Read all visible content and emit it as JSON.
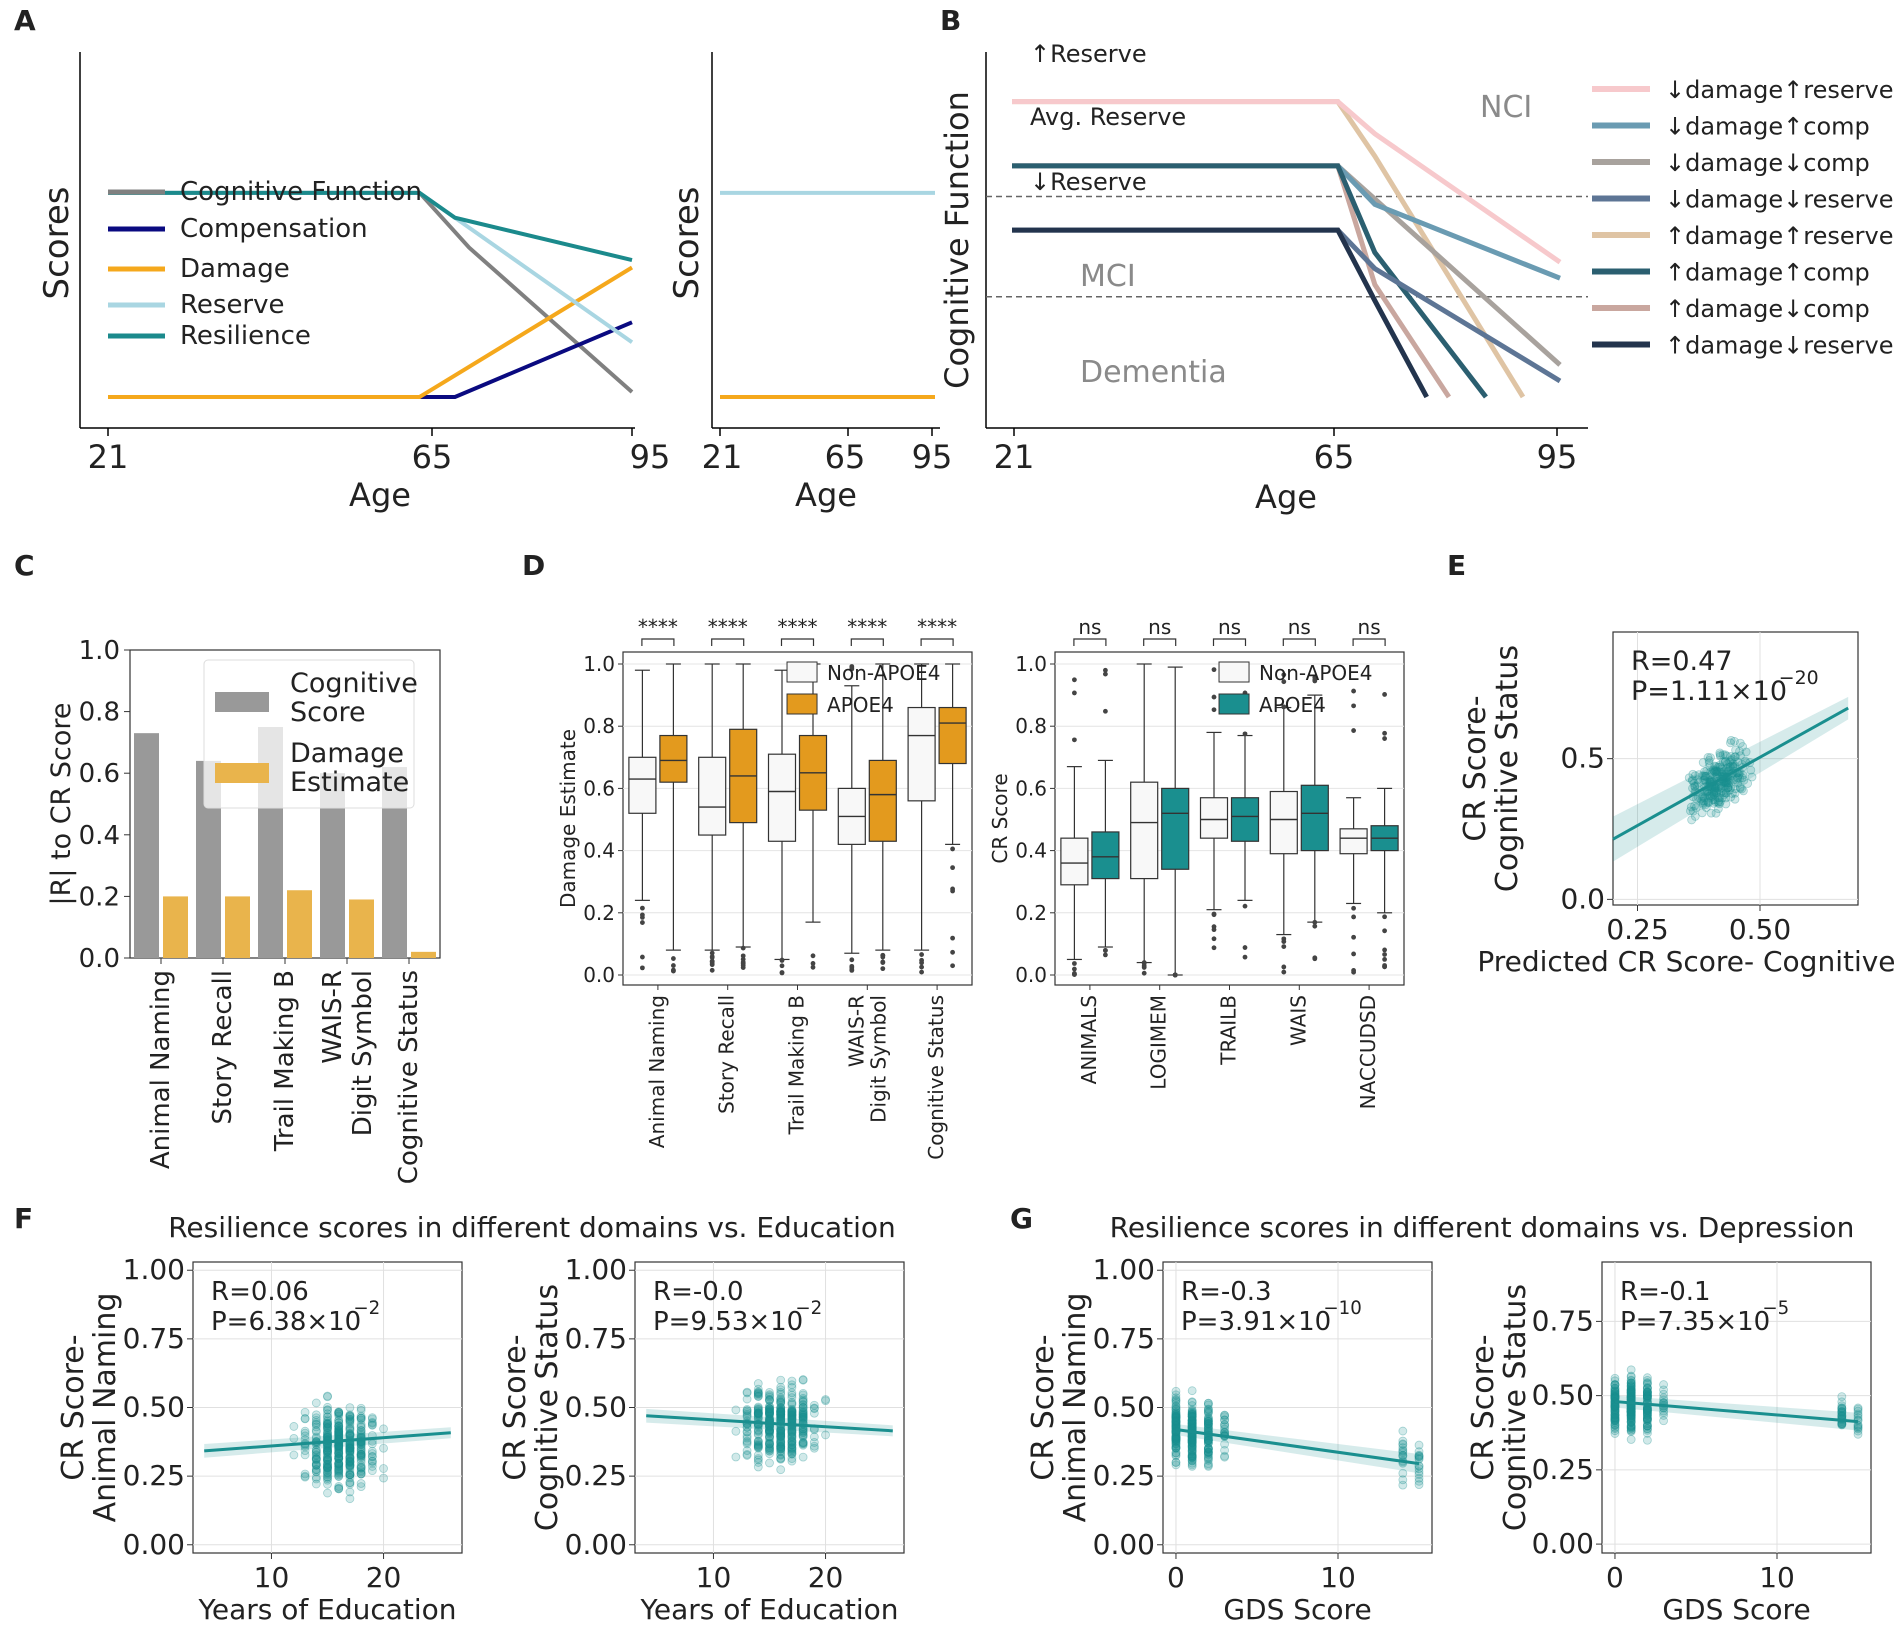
{
  "colors": {
    "cognitive": "#808080",
    "compensation": "#0a0a80",
    "damage": "#f5a81c",
    "reserve": "#a9d6e2",
    "resilience": "#1b8a8c",
    "teal": "#1a8f8f",
    "apoe4_orange": "#e39a1e",
    "grey_bar": "#999999",
    "gold_bar": "#e9b44c",
    "nci_text": "#8a8a8a"
  },
  "panels": {
    "A": "A",
    "B": "B",
    "C": "C",
    "D": "D",
    "E": "E",
    "F": "F",
    "G": "G"
  },
  "chart_data": [
    {
      "id": "A1",
      "type": "line",
      "xlabel": "Age",
      "ylabel": "Scores",
      "xticks": [
        "21",
        "65",
        "95"
      ],
      "xlim": [
        21,
        95
      ],
      "ylim": [
        0,
        1
      ],
      "legend": [
        "Cognitive Function",
        "Compensation",
        "Damage",
        "Reserve",
        "Resilience"
      ],
      "series": [
        {
          "name": "Cognitive Function",
          "color": "#808080",
          "points": [
            [
              21,
              0.82
            ],
            [
              65,
              0.82
            ],
            [
              72,
              0.6
            ],
            [
              95,
              0.02
            ]
          ]
        },
        {
          "name": "Compensation",
          "color": "#0a0a80",
          "points": [
            [
              21,
              0.0
            ],
            [
              65,
              0.0
            ],
            [
              70,
              0.0
            ],
            [
              95,
              0.3
            ]
          ]
        },
        {
          "name": "Damage",
          "color": "#f5a81c",
          "points": [
            [
              21,
              0.0
            ],
            [
              65,
              0.0
            ],
            [
              95,
              0.52
            ]
          ]
        },
        {
          "name": "Reserve",
          "color": "#a9d6e2",
          "points": [
            [
              21,
              0.82
            ],
            [
              65,
              0.82
            ],
            [
              95,
              0.22
            ]
          ]
        },
        {
          "name": "Resilience",
          "color": "#1b8a8c",
          "points": [
            [
              21,
              0.82
            ],
            [
              65,
              0.82
            ],
            [
              70,
              0.72
            ],
            [
              95,
              0.55
            ]
          ]
        }
      ]
    },
    {
      "id": "A2",
      "type": "line",
      "xlabel": "Age",
      "ylabel": "Scores",
      "xticks": [
        "21",
        "65",
        "95"
      ],
      "xlim": [
        21,
        95
      ],
      "ylim": [
        0,
        1
      ],
      "series": [
        {
          "name": "Reserve",
          "color": "#a9d6e2",
          "points": [
            [
              21,
              0.82
            ],
            [
              95,
              0.82
            ]
          ]
        },
        {
          "name": "Damage",
          "color": "#f5a81c",
          "points": [
            [
              21,
              0.0
            ],
            [
              95,
              0.0
            ]
          ]
        }
      ]
    },
    {
      "id": "B",
      "type": "line",
      "xlabel": "Age",
      "ylabel": "Cognitive Function",
      "xticks": [
        "21",
        "65",
        "95"
      ],
      "xlim": [
        21,
        95
      ],
      "ylim": [
        0,
        1
      ],
      "annotations": [
        "↑Reserve",
        "Avg. Reserve",
        "↓Reserve",
        "NCI",
        "MCI",
        "Dementia"
      ],
      "thresholds": [
        0.5,
        0.25
      ],
      "legend": [
        "↓damage↑reserve",
        "↓damage↑comp",
        "↓damage↓comp",
        "↓damage↓reserve",
        "↑damage↑reserve",
        "↑damage↑comp",
        "↑damage↓comp",
        "↑damage↓reserve"
      ],
      "series": [
        {
          "name": "↓damage↑reserve",
          "color": "#f7c9cc",
          "points": [
            [
              21,
              0.92
            ],
            [
              65,
              0.92
            ],
            [
              70,
              0.82
            ],
            [
              95,
              0.42
            ]
          ]
        },
        {
          "name": "↓damage↑comp",
          "color": "#6a9bb2",
          "points": [
            [
              21,
              0.72
            ],
            [
              65,
              0.72
            ],
            [
              70,
              0.6
            ],
            [
              95,
              0.37
            ]
          ]
        },
        {
          "name": "↓damage↓comp",
          "color": "#a8a29d",
          "points": [
            [
              21,
              0.72
            ],
            [
              65,
              0.72
            ],
            [
              95,
              0.1
            ]
          ]
        },
        {
          "name": "↓damage↓reserve",
          "color": "#5d7595",
          "points": [
            [
              21,
              0.52
            ],
            [
              65,
              0.52
            ],
            [
              70,
              0.4
            ],
            [
              95,
              0.05
            ]
          ]
        },
        {
          "name": "↑damage↑reserve",
          "color": "#dfc4a4",
          "points": [
            [
              21,
              0.92
            ],
            [
              65,
              0.92
            ],
            [
              70,
              0.75
            ],
            [
              90,
              0.0
            ]
          ]
        },
        {
          "name": "↑damage↑comp",
          "color": "#2b5f70",
          "points": [
            [
              21,
              0.72
            ],
            [
              65,
              0.72
            ],
            [
              70,
              0.45
            ],
            [
              85,
              0.0
            ]
          ]
        },
        {
          "name": "↑damage↓comp",
          "color": "#c9a79f",
          "points": [
            [
              21,
              0.72
            ],
            [
              65,
              0.72
            ],
            [
              70,
              0.35
            ],
            [
              80,
              0.0
            ]
          ]
        },
        {
          "name": "↑damage↓reserve",
          "color": "#23344d",
          "points": [
            [
              21,
              0.52
            ],
            [
              65,
              0.52
            ],
            [
              70,
              0.3
            ],
            [
              77,
              0.0
            ]
          ]
        }
      ]
    },
    {
      "id": "C",
      "type": "bar",
      "ylabel": "|R| to CR Score",
      "ylim": [
        0,
        1
      ],
      "yticks": [
        "0.0",
        "0.2",
        "0.4",
        "0.6",
        "0.8",
        "1.0"
      ],
      "categories": [
        "Animal Naming",
        "Story Recall",
        "Trail Making B",
        "WAIS-R\nDigit Symbol",
        "Cognitive Status"
      ],
      "legend": [
        "Cognitive\nScore",
        "Damage\nEstimate"
      ],
      "series": [
        {
          "name": "Cognitive Score",
          "values": [
            0.73,
            0.64,
            0.75,
            0.6,
            0.62
          ]
        },
        {
          "name": "Damage Estimate",
          "values": [
            0.2,
            0.2,
            0.22,
            0.19,
            0.02
          ]
        }
      ]
    },
    {
      "id": "D1",
      "type": "box",
      "ylabel": "Damage Estimate",
      "ylim": [
        0,
        1
      ],
      "yticks": [
        "0.0",
        "0.2",
        "0.4",
        "0.6",
        "0.8",
        "1.0"
      ],
      "categories": [
        "Animal Naming",
        "Story Recall",
        "Trail Making B",
        "WAIS-R\nDigit Symbol",
        "Cognitive Status"
      ],
      "significance": [
        "****",
        "****",
        "****",
        "****",
        "****"
      ],
      "legend": [
        "Non-APOE4",
        "APOE4"
      ],
      "groups": [
        {
          "name": "Non-APOE4",
          "boxes": [
            [
              0.24,
              0.52,
              0.63,
              0.7,
              0.98
            ],
            [
              0.08,
              0.45,
              0.54,
              0.7,
              1.0
            ],
            [
              0.05,
              0.43,
              0.59,
              0.71,
              0.98
            ],
            [
              0.07,
              0.42,
              0.51,
              0.6,
              0.93
            ],
            [
              0.08,
              0.56,
              0.77,
              0.86,
              1.0
            ]
          ]
        },
        {
          "name": "APOE4",
          "boxes": [
            [
              0.08,
              0.62,
              0.69,
              0.77,
              1.0
            ],
            [
              0.09,
              0.49,
              0.64,
              0.79,
              1.0
            ],
            [
              0.17,
              0.53,
              0.65,
              0.77,
              1.0
            ],
            [
              0.08,
              0.43,
              0.58,
              0.69,
              1.0
            ],
            [
              0.42,
              0.68,
              0.81,
              0.86,
              1.0
            ]
          ]
        }
      ]
    },
    {
      "id": "D2",
      "type": "box",
      "ylabel": "CR Score",
      "ylim": [
        0,
        1
      ],
      "yticks": [
        "0.0",
        "0.2",
        "0.4",
        "0.6",
        "0.8",
        "1.0"
      ],
      "categories": [
        "ANIMALS",
        "LOGIMEM",
        "TRAILB",
        "WAIS",
        "NACCUDSD"
      ],
      "significance": [
        "ns",
        "ns",
        "ns",
        "ns",
        "ns"
      ],
      "legend": [
        "Non-APOE4",
        "APOE4"
      ],
      "groups": [
        {
          "name": "Non-APOE4",
          "boxes": [
            [
              0.05,
              0.29,
              0.36,
              0.44,
              0.67
            ],
            [
              0.04,
              0.31,
              0.49,
              0.62,
              1.0
            ],
            [
              0.21,
              0.44,
              0.5,
              0.57,
              0.78
            ],
            [
              0.13,
              0.39,
              0.5,
              0.59,
              0.86
            ],
            [
              0.23,
              0.39,
              0.44,
              0.47,
              0.57
            ]
          ]
        },
        {
          "name": "APOE4",
          "boxes": [
            [
              0.09,
              0.31,
              0.38,
              0.46,
              0.69
            ],
            [
              0.0,
              0.34,
              0.52,
              0.6,
              0.99
            ],
            [
              0.24,
              0.43,
              0.51,
              0.57,
              0.77
            ],
            [
              0.17,
              0.4,
              0.52,
              0.61,
              0.9
            ],
            [
              0.2,
              0.4,
              0.44,
              0.48,
              0.6
            ]
          ]
        }
      ]
    },
    {
      "id": "E",
      "type": "scatter",
      "xlabel": "Predicted CR Score-\nCognitive Status",
      "ylabel": "CR Score-\nCognitive Status",
      "xticks": [
        "0.25",
        "0.50"
      ],
      "yticks": [
        "0.0",
        "0.5"
      ],
      "xlim": [
        0.2,
        0.7
      ],
      "ylim": [
        -0.02,
        0.95
      ],
      "fit": {
        "slope": 0.97,
        "intercept": 0.02
      },
      "R": "R=0.47",
      "P": "P=1.11×10",
      "P_exp": "−20"
    },
    {
      "id": "F1",
      "type": "scatter",
      "xlabel": "Years of Education",
      "ylabel": "CR Score-\nAnimal Naming",
      "xticks": [
        "10",
        "20"
      ],
      "yticks": [
        "0.00",
        "0.25",
        "0.50",
        "0.75",
        "1.00"
      ],
      "xlim": [
        3,
        27
      ],
      "ylim": [
        -0.03,
        1.03
      ],
      "fit": {
        "slope": 0.003,
        "intercept": 0.33
      },
      "R": "R=0.06",
      "P": "P=6.38×10",
      "P_exp": "−2"
    },
    {
      "id": "F2",
      "type": "scatter",
      "xlabel": "Years of Education",
      "ylabel": "CR Score-\nCognitive Status",
      "xticks": [
        "10",
        "20"
      ],
      "yticks": [
        "0.00",
        "0.25",
        "0.50",
        "0.75",
        "1.00"
      ],
      "xlim": [
        3,
        27
      ],
      "ylim": [
        -0.03,
        1.03
      ],
      "fit": {
        "slope": -0.0025,
        "intercept": 0.48
      },
      "R": "R=-0.0",
      "P": "P=9.53×10",
      "P_exp": "−2"
    },
    {
      "id": "G1",
      "type": "scatter",
      "xlabel": "GDS Score",
      "ylabel": "CR Score-\nAnimal Naming",
      "xticks": [
        "0",
        "10"
      ],
      "yticks": [
        "0.00",
        "0.25",
        "0.50",
        "0.75",
        "1.00"
      ],
      "xlim": [
        -0.8,
        15.8
      ],
      "ylim": [
        -0.03,
        1.03
      ],
      "fit": {
        "slope": -0.0083,
        "intercept": 0.42
      },
      "R": "R=-0.3",
      "P": "P=3.91×10",
      "P_exp": "−10"
    },
    {
      "id": "G2",
      "type": "scatter",
      "xlabel": "GDS Score",
      "ylabel": "CR Score-\nCognitive Status",
      "xticks": [
        "0",
        "10"
      ],
      "yticks": [
        "0.00",
        "0.25",
        "0.50",
        "0.75"
      ],
      "xlim": [
        -0.8,
        15.8
      ],
      "ylim": [
        -0.03,
        0.95
      ],
      "fit": {
        "slope": -0.0045,
        "intercept": 0.48
      },
      "R": "R=-0.1",
      "P": "P=7.35×10",
      "P_exp": "−5"
    }
  ],
  "titles": {
    "F": "Resilience scores in different domains vs. Education",
    "G": "Resilience scores in different domains vs. Depression"
  }
}
